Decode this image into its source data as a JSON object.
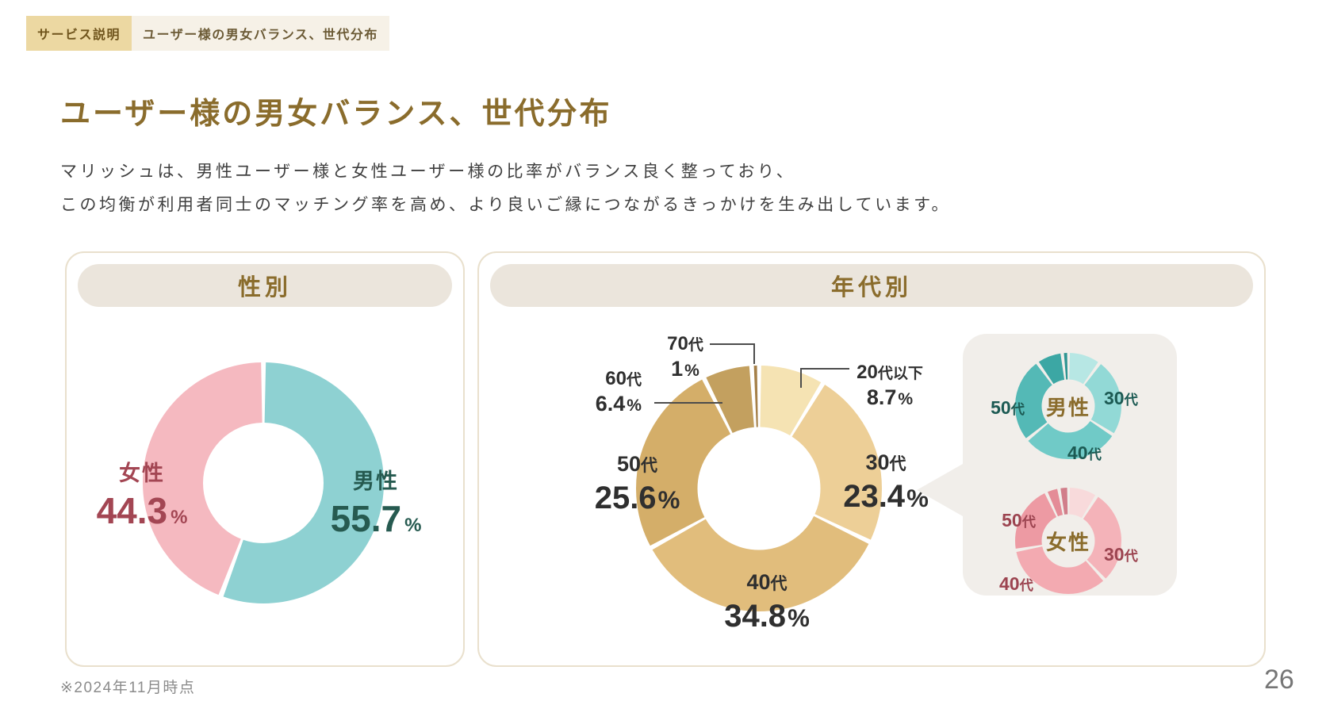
{
  "header": {
    "category_tag": "サービス説明",
    "subtitle_tag": "ユーザー様の男女バランス、世代分布"
  },
  "title": "ユーザー様の男女バランス、世代分布",
  "intro": {
    "line1": "マリッシュは、男性ユーザー様と女性ユーザー様の比率がバランス良く整っており、",
    "line2": "この均衡が利用者同士のマッチング率を高め、より良いご縁につながるきっかけを生み出しています。"
  },
  "cards": {
    "gender": {
      "title": "性別",
      "labels": {
        "female": {
          "name": "女性",
          "value": "44.3",
          "unit": "%"
        },
        "male": {
          "name": "男性",
          "value": "55.7",
          "unit": "%"
        }
      }
    },
    "age": {
      "title": "年代別",
      "labels": {
        "u20": {
          "num": "20",
          "suffix": "代以下",
          "value": "8.7",
          "unit": "%"
        },
        "s30": {
          "num": "30",
          "suffix": "代",
          "value": "23.4",
          "unit": "%"
        },
        "s40": {
          "num": "40",
          "suffix": "代",
          "value": "34.8",
          "unit": "%"
        },
        "s50": {
          "num": "50",
          "suffix": "代",
          "value": "25.6",
          "unit": "%"
        },
        "s60": {
          "num": "60",
          "suffix": "代",
          "value": "6.4",
          "unit": "%"
        },
        "s70": {
          "num": "70",
          "suffix": "代",
          "value": "1",
          "unit": "%"
        }
      },
      "callout": {
        "male": {
          "center": "男性",
          "labels": {
            "s50": {
              "num": "50",
              "suffix": "代"
            },
            "s30": {
              "num": "30",
              "suffix": "代"
            },
            "s40": {
              "num": "40",
              "suffix": "代"
            }
          }
        },
        "female": {
          "center": "女性",
          "labels": {
            "s50": {
              "num": "50",
              "suffix": "代"
            },
            "s30": {
              "num": "30",
              "suffix": "代"
            },
            "s40": {
              "num": "40",
              "suffix": "代"
            }
          }
        }
      }
    }
  },
  "page": {
    "note": "※2024年11月時点",
    "number": "26"
  },
  "colors": {
    "accent_brown": "#8a6c2c",
    "category_tag_bg": "#ecd8a2",
    "subtitle_tag_bg": "#f6f1e7",
    "card_border": "#e9e0cd",
    "pill_bg": "#ebe5dc",
    "female_text": "#a34653",
    "male_text": "#265a50",
    "mini_male_label_text": "#1c5a53",
    "mini_female_label_text": "#9c4450",
    "callout_bubble_bg": "#f1eeea",
    "leader_line": "#4c4c4c"
  },
  "chart_data": [
    {
      "id": "gender-ratio",
      "type": "pie",
      "donut": true,
      "title": "性別",
      "categories": [
        "男性",
        "女性"
      ],
      "values": [
        55.7,
        44.3
      ],
      "unit": "%",
      "colors": [
        "#8ed1d2",
        "#f5b9c0"
      ],
      "start_angle": "top",
      "direction": "clockwise"
    },
    {
      "id": "age-distribution-overall",
      "type": "pie",
      "donut": true,
      "title": "年代別",
      "categories": [
        "20代以下",
        "30代",
        "40代",
        "50代",
        "60代",
        "70代"
      ],
      "values": [
        8.7,
        23.4,
        34.8,
        25.6,
        6.4,
        1
      ],
      "unit": "%",
      "colors": [
        "#f5e3b3",
        "#edcf97",
        "#e1bd7c",
        "#d4ae69",
        "#c3a05f",
        "#a58049"
      ],
      "start_angle": "top",
      "direction": "clockwise"
    },
    {
      "id": "age-distribution-male",
      "type": "pie",
      "donut": true,
      "title": "男性",
      "categories": [
        "20代以下",
        "30代",
        "40代",
        "50代",
        "60代",
        "70代"
      ],
      "values": [
        10,
        24,
        30,
        26,
        8,
        2
      ],
      "values_estimated": true,
      "labeled_categories": [
        "30代",
        "40代",
        "50代"
      ],
      "colors": [
        "#b7e7e4",
        "#92d9d6",
        "#70cac7",
        "#54b9b6",
        "#3ca7a4",
        "#2f9693"
      ],
      "start_angle": "top",
      "direction": "clockwise"
    },
    {
      "id": "age-distribution-female",
      "type": "pie",
      "donut": true,
      "title": "女性",
      "categories": [
        "20代以下",
        "30代",
        "40代",
        "50代",
        "60代",
        "70代"
      ],
      "values": [
        9,
        29,
        34,
        21,
        4,
        3
      ],
      "values_estimated": true,
      "labeled_categories": [
        "30代",
        "40代",
        "50代"
      ],
      "colors": [
        "#f8dadb",
        "#f4b3b9",
        "#f3aab1",
        "#ed9aa3",
        "#e48c97",
        "#d17e8a"
      ],
      "start_angle": "top",
      "direction": "clockwise"
    }
  ]
}
